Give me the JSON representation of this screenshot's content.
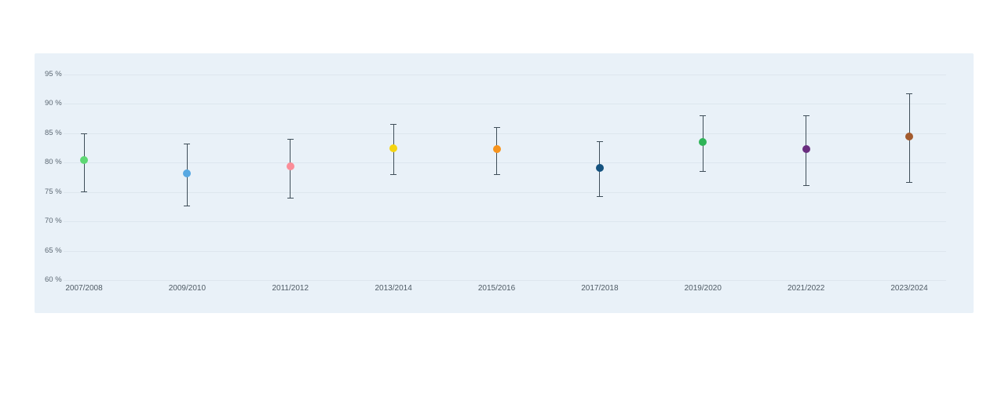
{
  "page": {
    "background_color": "#ffffff"
  },
  "chart": {
    "panel_background_color": "#e9f1f8",
    "gridline_color": "#dde6ee",
    "y_label_color": "#5c6873",
    "x_label_color": "#4e5a64",
    "whisker_color": "#3f4e59"
  },
  "chart_data": {
    "type": "scatter",
    "subtype": "dot-plot-with-error-bars",
    "title": "",
    "xlabel": "",
    "ylabel": "%",
    "ylim": [
      60,
      95
    ],
    "y_ticks": [
      95,
      90,
      85,
      80,
      75,
      70,
      65,
      60
    ],
    "y_tick_suffix": " %",
    "grid": true,
    "legend": false,
    "categories": [
      "2007/2008",
      "2009/2010",
      "2011/2012",
      "2013/2014",
      "2015/2016",
      "2017/2018",
      "2019/2020",
      "2021/2022",
      "2023/2024"
    ],
    "points": [
      {
        "category": "2007/2008",
        "value": 80.4,
        "low": 75.1,
        "high": 85.0,
        "color": "#5ED874"
      },
      {
        "category": "2009/2010",
        "value": 78.2,
        "low": 72.7,
        "high": 83.3,
        "color": "#57A8E2"
      },
      {
        "category": "2011/2012",
        "value": 79.4,
        "low": 74.0,
        "high": 84.1,
        "color": "#FB8D98"
      },
      {
        "category": "2013/2014",
        "value": 82.5,
        "low": 78.0,
        "high": 86.6,
        "color": "#F5D511"
      },
      {
        "category": "2015/2016",
        "value": 82.3,
        "low": 78.0,
        "high": 86.0,
        "color": "#F7941D"
      },
      {
        "category": "2017/2018",
        "value": 79.1,
        "low": 74.3,
        "high": 83.6,
        "color": "#14527F"
      },
      {
        "category": "2019/2020",
        "value": 83.5,
        "low": 78.6,
        "high": 88.0,
        "color": "#2EB457"
      },
      {
        "category": "2021/2022",
        "value": 82.3,
        "low": 76.1,
        "high": 88.0,
        "color": "#6A2D7F"
      },
      {
        "category": "2023/2024",
        "value": 84.4,
        "low": 76.7,
        "high": 91.8,
        "color": "#A35B2E"
      }
    ]
  }
}
